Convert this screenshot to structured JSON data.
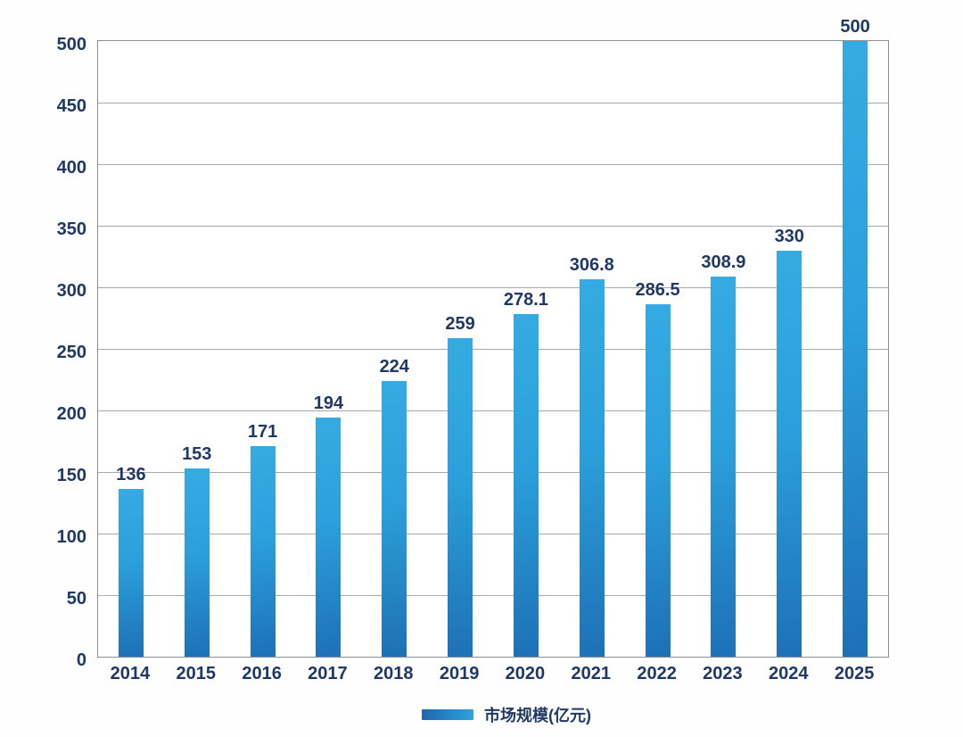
{
  "chart_data": {
    "type": "bar",
    "categories": [
      "2014",
      "2015",
      "2016",
      "2017",
      "2018",
      "2019",
      "2020",
      "2021",
      "2022",
      "2023",
      "2024",
      "2025"
    ],
    "values": [
      136,
      153,
      171,
      194,
      224,
      259,
      278.1,
      306.8,
      286.5,
      308.9,
      330,
      500
    ],
    "value_labels": [
      "136",
      "153",
      "171",
      "194",
      "224",
      "259",
      "278.1",
      "306.8",
      "286.5",
      "308.9",
      "330",
      "500"
    ],
    "title": "",
    "xlabel": "",
    "ylabel": "",
    "ylim": [
      0,
      500
    ],
    "yticks": [
      "0",
      "50",
      "100",
      "150",
      "200",
      "250",
      "300",
      "350",
      "400",
      "450",
      "500"
    ],
    "grid": "horizontal",
    "legend": "市场规模(亿元)",
    "legend_position": "bottom-center",
    "colors": {
      "bar_gradient_top": "#35abe2",
      "bar_gradient_bottom": "#1e71b6",
      "label_text": "#1f3864",
      "gridline": "#a8a8a8",
      "plot_border": "#8f8f8f",
      "background": "#fefefe",
      "legend_swatch_left": "#1e66ae",
      "legend_swatch_right": "#2ea3dc"
    }
  }
}
